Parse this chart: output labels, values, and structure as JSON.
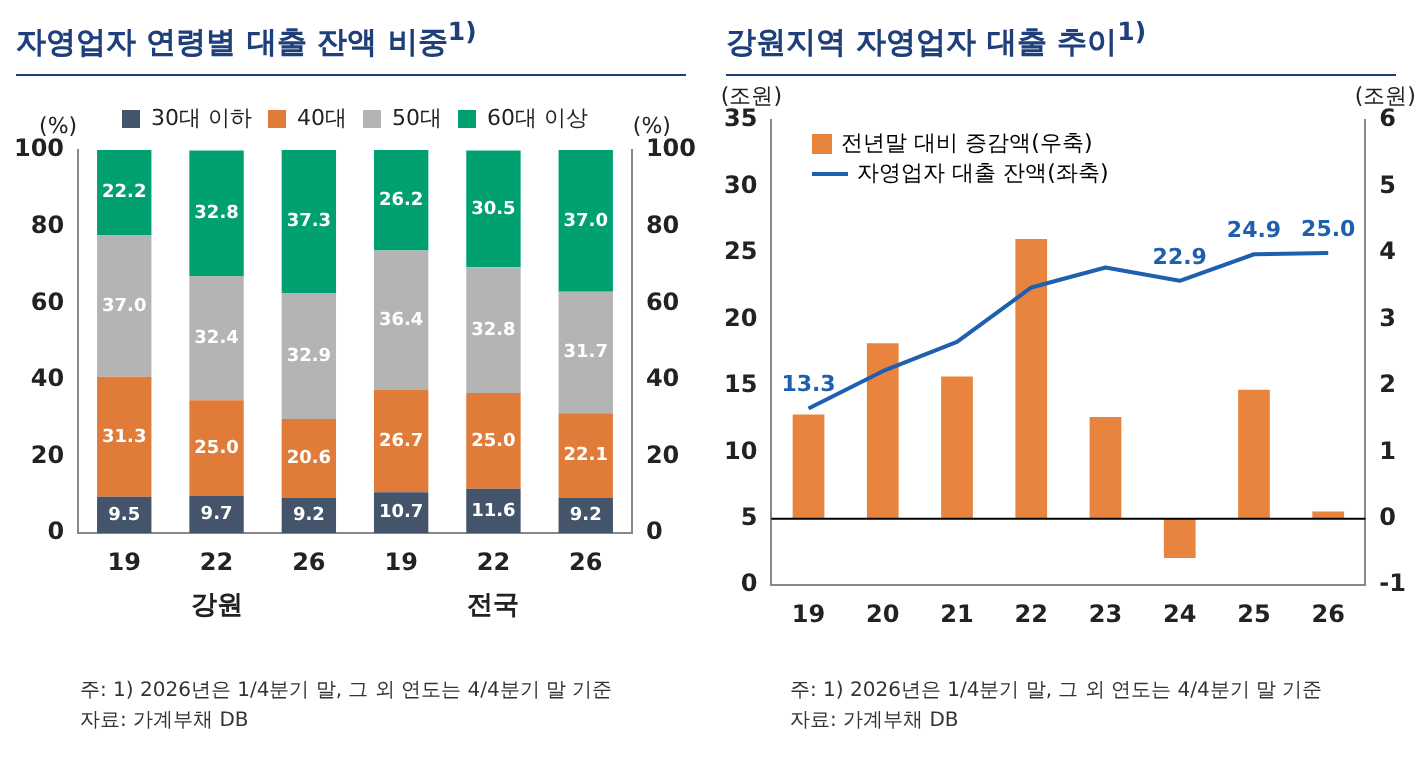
{
  "chart_data": [
    {
      "type": "bar",
      "title": "자영업자 연령별 대출 잔액 비중$^{1)}$",
      "ylabel": "(%)",
      "y2label": "(%)",
      "categories": [
        "19",
        "22",
        "26",
        "19",
        "22",
        "26"
      ],
      "stacked": true,
      "series": [
        {
          "name": "30대 이하",
          "color": "#44546a",
          "values": [
            9.5,
            9.7,
            9.2,
            10.7,
            11.6,
            9.2
          ],
          "value_labels": [
            "9.5",
            "9.7",
            "9.2",
            "10.7",
            "11.6",
            "9.2"
          ]
        },
        {
          "name": "40대",
          "color": "#e07b39",
          "values": [
            31.3,
            25.0,
            20.6,
            26.7,
            25.0,
            22.1
          ],
          "value_labels": [
            "31.3",
            "25.0",
            "20.6",
            "26.7",
            "25.0",
            "22.1"
          ]
        },
        {
          "name": "50대",
          "color": "#b4b4b4",
          "values": [
            37.0,
            32.4,
            32.9,
            36.4,
            32.8,
            31.7
          ],
          "value_labels": [
            "37.0",
            "32.4",
            "32.9",
            "36.4",
            "32.8",
            "31.7"
          ]
        },
        {
          "name": "60대 이상",
          "color": "#00a070",
          "values": [
            22.2,
            32.8,
            37.3,
            26.2,
            30.5,
            37.0
          ],
          "value_labels": [
            "22.2",
            "32.8",
            "37.3",
            "26.2",
            "30.5",
            "37.0"
          ]
        }
      ],
      "ylim": [
        0,
        100
      ],
      "yticks": [
        0,
        20,
        40,
        60,
        80,
        100
      ],
      "y2lim": [
        0,
        100
      ],
      "y2ticks": [
        0,
        20,
        40,
        60,
        80,
        100
      ],
      "grid": false,
      "legend": "top",
      "annotations": [
        "강원",
        "전국",
        "주: 1) 2026년은 1/4분기 말, 그 외 연도는 4/4분기 말 기준",
        "자료: 가계부채 DB"
      ]
    },
    {
      "type": "bar",
      "title": "강원지역 자영업자 대출 추이$^{1)}$",
      "ylabel": "(조원)",
      "y2label": "(조원)",
      "categories": [
        "19",
        "20",
        "21",
        "22",
        "23",
        "24",
        "25",
        "26"
      ],
      "series": [
        {
          "name": "전년말 대비 증감액(우축)",
          "axis": "y2",
          "color": "#e8843e",
          "values": [
            1.57,
            2.64,
            2.14,
            4.21,
            1.53,
            -0.59,
            1.94,
            0.11
          ]
        },
        {
          "name": "자영업자 대출 잔액(좌축)",
          "type": "line",
          "axis": "y",
          "color": "#1f5fb0",
          "marker": "none",
          "line_style": "solid",
          "values": [
            13.3,
            16.1,
            18.3,
            22.4,
            23.9,
            22.9,
            24.9,
            25.0
          ],
          "value_labels": [
            "13.3",
            null,
            null,
            null,
            null,
            "22.9",
            "24.9",
            "25.0"
          ]
        }
      ],
      "ylim": [
        0,
        35
      ],
      "yticks": [
        0,
        5,
        10,
        15,
        20,
        25,
        30,
        35
      ],
      "y2lim": [
        -1,
        6
      ],
      "y2ticks": [
        -1,
        0,
        1,
        2,
        3,
        4,
        5,
        6
      ],
      "ref_lines": [
        {
          "axis": "y2",
          "value": 0,
          "color": "#000000"
        }
      ],
      "grid": false,
      "legend": "top left",
      "annotations": [
        "주: 1) 2026년은 1/4분기 말, 그 외 연도는 4/4분기 말 기준",
        "자료: 가계부채 DB"
      ]
    }
  ]
}
